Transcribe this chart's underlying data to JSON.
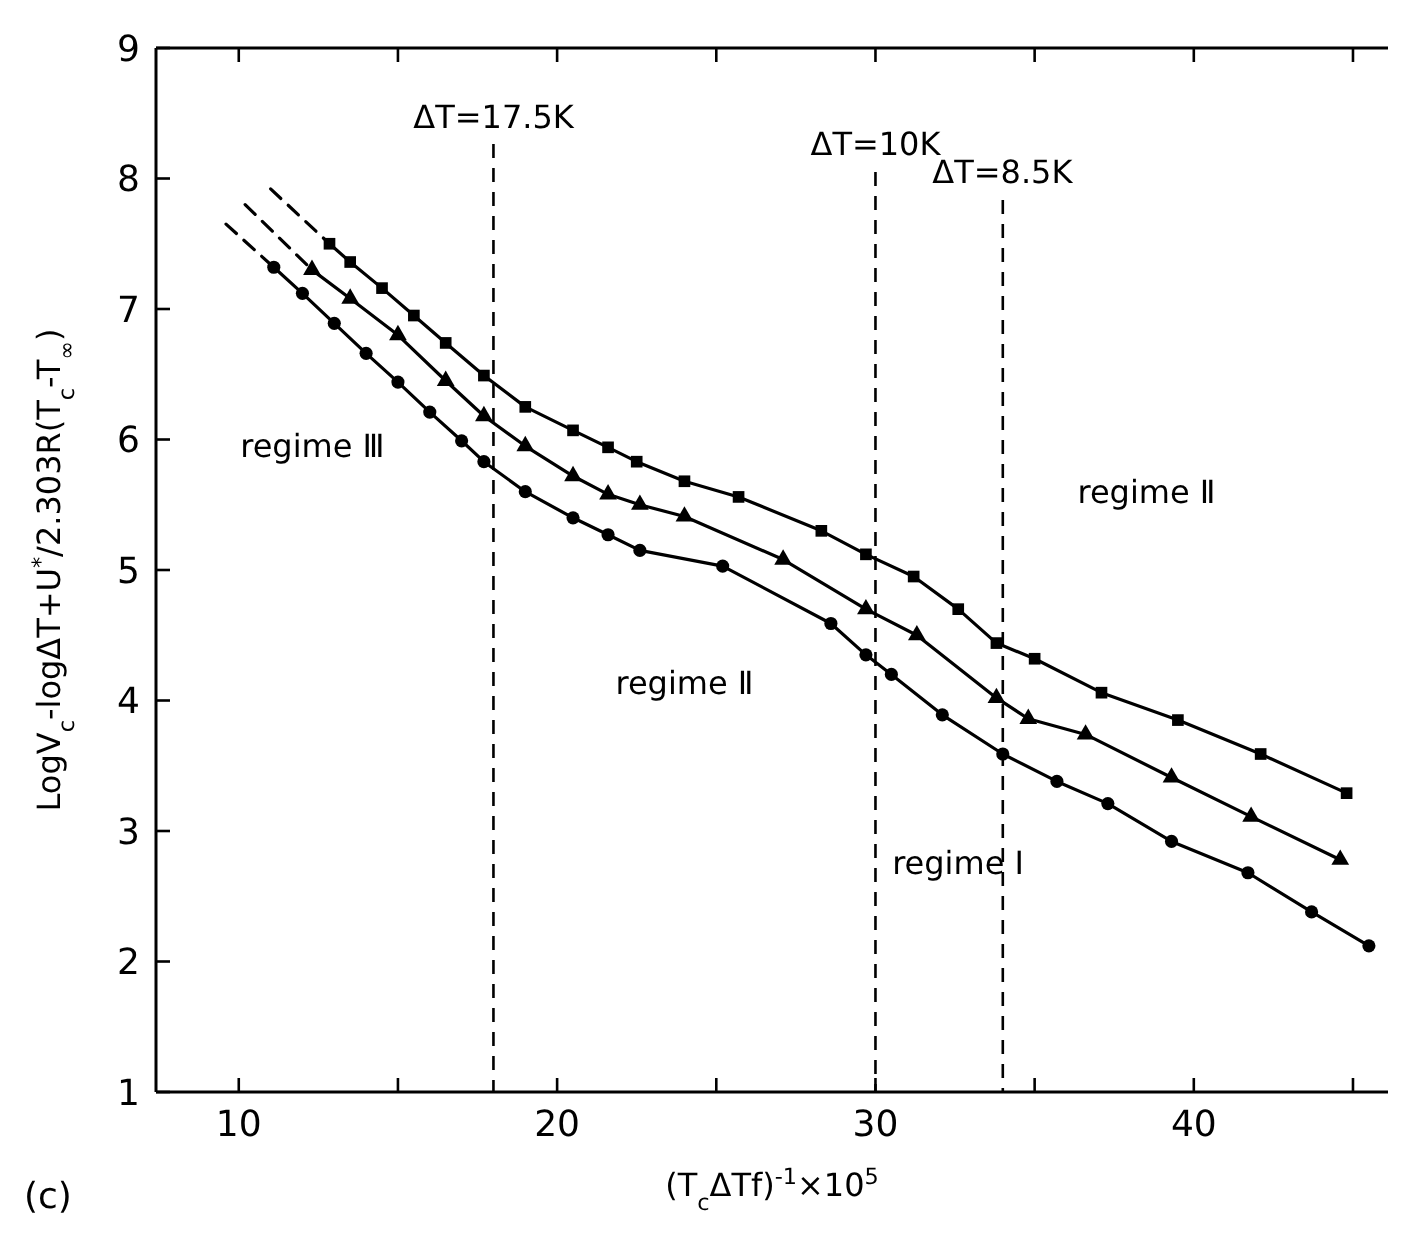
{
  "chart_data": {
    "type": "line",
    "xlabel": "(T$_{c}$ΔTf)$^{-1}$×10$^{5}$",
    "ylabel": "LogV$_{c}$-logΔT+U$^{*}$/2.303R(T$_{c}$-T$_{∞}$)",
    "xlim": [
      7.4,
      46.1
    ],
    "ylim": [
      1,
      9
    ],
    "xticks": [
      10,
      {
        "value": 15,
        "label": null
      },
      20,
      {
        "value": 25,
        "label": null
      },
      30,
      {
        "value": 35,
        "label": null
      },
      40,
      {
        "value": 45,
        "label": null
      }
    ],
    "yticks": [
      1,
      2,
      3,
      4,
      5,
      6,
      7,
      8,
      9
    ],
    "grid": false,
    "series": [
      {
        "color": "#000000",
        "marker": "square",
        "line_style": "solid",
        "x": [
          12.85,
          13.5,
          14.5,
          15.5,
          16.5,
          17.7,
          19,
          20.5,
          21.6,
          22.5,
          24.0,
          25.7,
          28.3,
          29.7,
          31.2,
          32.6,
          33.8,
          35.0,
          37.1,
          39.5,
          42.1,
          44.8
        ],
        "values": [
          7.5,
          7.36,
          7.16,
          6.95,
          6.74,
          6.49,
          6.25,
          6.07,
          5.94,
          5.83,
          5.68,
          5.56,
          5.3,
          5.12,
          4.95,
          4.7,
          4.44,
          4.32,
          4.06,
          3.85,
          3.59,
          3.29
        ]
      },
      {
        "color": "#000000",
        "marker": "triangle",
        "line_style": "solid",
        "x": [
          12.3,
          13.5,
          15,
          16.5,
          17.7,
          19,
          20.5,
          21.6,
          22.6,
          24.0,
          27.1,
          29.7,
          31.3,
          33.8,
          34.8,
          36.6,
          39.3,
          41.8,
          44.6
        ],
        "values": [
          7.3,
          7.08,
          6.8,
          6.45,
          6.18,
          5.95,
          5.72,
          5.58,
          5.5,
          5.41,
          5.08,
          4.7,
          4.5,
          4.02,
          3.86,
          3.74,
          3.41,
          3.11,
          2.78
        ]
      },
      {
        "color": "#000000",
        "marker": "circle",
        "line_style": "solid",
        "x": [
          11.1,
          12,
          13,
          14,
          15,
          16,
          17,
          17.7,
          19,
          20.5,
          21.6,
          22.6,
          25.2,
          28.6,
          29.7,
          30.5,
          32.1,
          34.0,
          35.7,
          37.3,
          39.3,
          41.7,
          43.7,
          45.5
        ],
        "values": [
          7.32,
          7.12,
          6.89,
          6.66,
          6.44,
          6.21,
          5.99,
          5.83,
          5.6,
          5.4,
          5.27,
          5.15,
          5.03,
          4.59,
          4.35,
          4.2,
          3.89,
          3.59,
          3.38,
          3.21,
          2.92,
          2.68,
          2.38,
          2.12
        ]
      },
      {
        "color": "#000000",
        "marker": "none",
        "line_style": "dashed",
        "x": [
          11.0,
          12.85
        ],
        "values": [
          7.92,
          7.5
        ]
      },
      {
        "color": "#000000",
        "marker": "none",
        "line_style": "dashed",
        "x": [
          10.2,
          12.3
        ],
        "values": [
          7.8,
          7.3
        ]
      },
      {
        "color": "#000000",
        "marker": "none",
        "line_style": "dashed",
        "x": [
          9.6,
          11.1
        ],
        "values": [
          7.65,
          7.32
        ]
      }
    ],
    "ref_lines": [
      {
        "axis": "x",
        "value": 18,
        "line_style": "dashed",
        "color": "#000000"
      },
      {
        "axis": "x",
        "value": 30,
        "line_style": "dashed",
        "color": "#000000"
      },
      {
        "axis": "x",
        "value": 34,
        "line_style": "dashed",
        "color": "#000000"
      }
    ],
    "annotations": [
      "regime Ⅲ",
      "regime Ⅱ",
      "regime Ⅰ",
      "regime Ⅱ",
      "ΔT=17.5K",
      "ΔT=10K",
      "ΔT=8.5K",
      "(c)"
    ]
  }
}
